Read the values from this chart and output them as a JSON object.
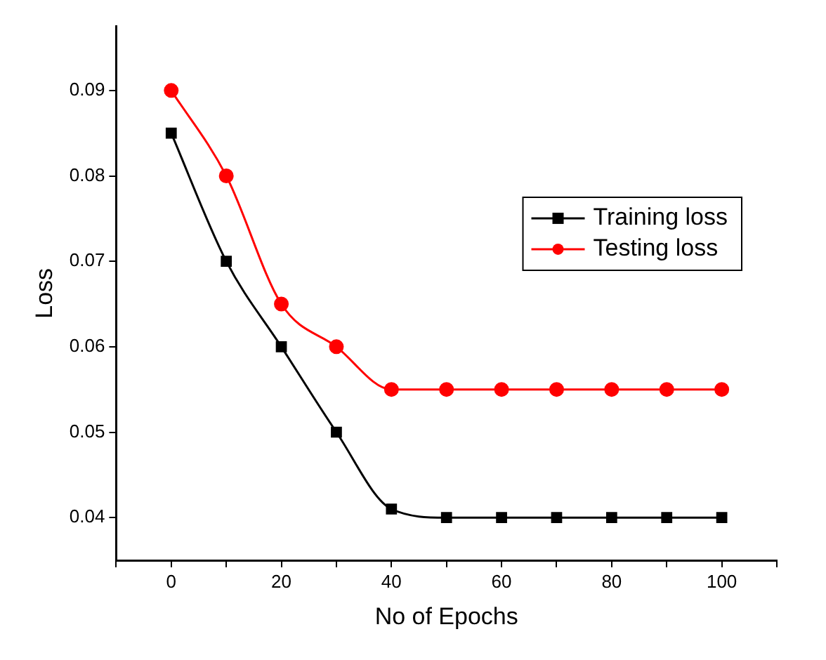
{
  "chart_data": {
    "type": "line",
    "xlabel": "No of Epochs",
    "ylabel": "Loss",
    "x": [
      0,
      10,
      20,
      30,
      40,
      50,
      60,
      70,
      80,
      90,
      100
    ],
    "series": [
      {
        "name": "Training loss",
        "color": "#000000",
        "marker": "square",
        "values": [
          0.085,
          0.07,
          0.06,
          0.05,
          0.041,
          0.04,
          0.04,
          0.04,
          0.04,
          0.04,
          0.04
        ]
      },
      {
        "name": "Testing loss",
        "color": "#ff0000",
        "marker": "circle",
        "values": [
          0.09,
          0.08,
          0.065,
          0.06,
          0.055,
          0.055,
          0.055,
          0.055,
          0.055,
          0.055,
          0.055
        ]
      }
    ],
    "xlim": [
      -10,
      110
    ],
    "xticks": [
      {
        "value": -10,
        "label": null
      },
      0,
      {
        "value": 10,
        "label": null
      },
      20,
      {
        "value": 30,
        "label": null
      },
      40,
      {
        "value": 50,
        "label": null
      },
      60,
      {
        "value": 70,
        "label": null
      },
      80,
      {
        "value": 90,
        "label": null
      },
      100,
      {
        "value": 110,
        "label": null
      }
    ],
    "ylim": [
      0.035,
      0.0975
    ],
    "yticks": [
      0.04,
      0.05,
      0.06,
      0.07,
      0.08,
      0.09
    ],
    "grid": false,
    "legend": "right",
    "line_style": "solid"
  }
}
